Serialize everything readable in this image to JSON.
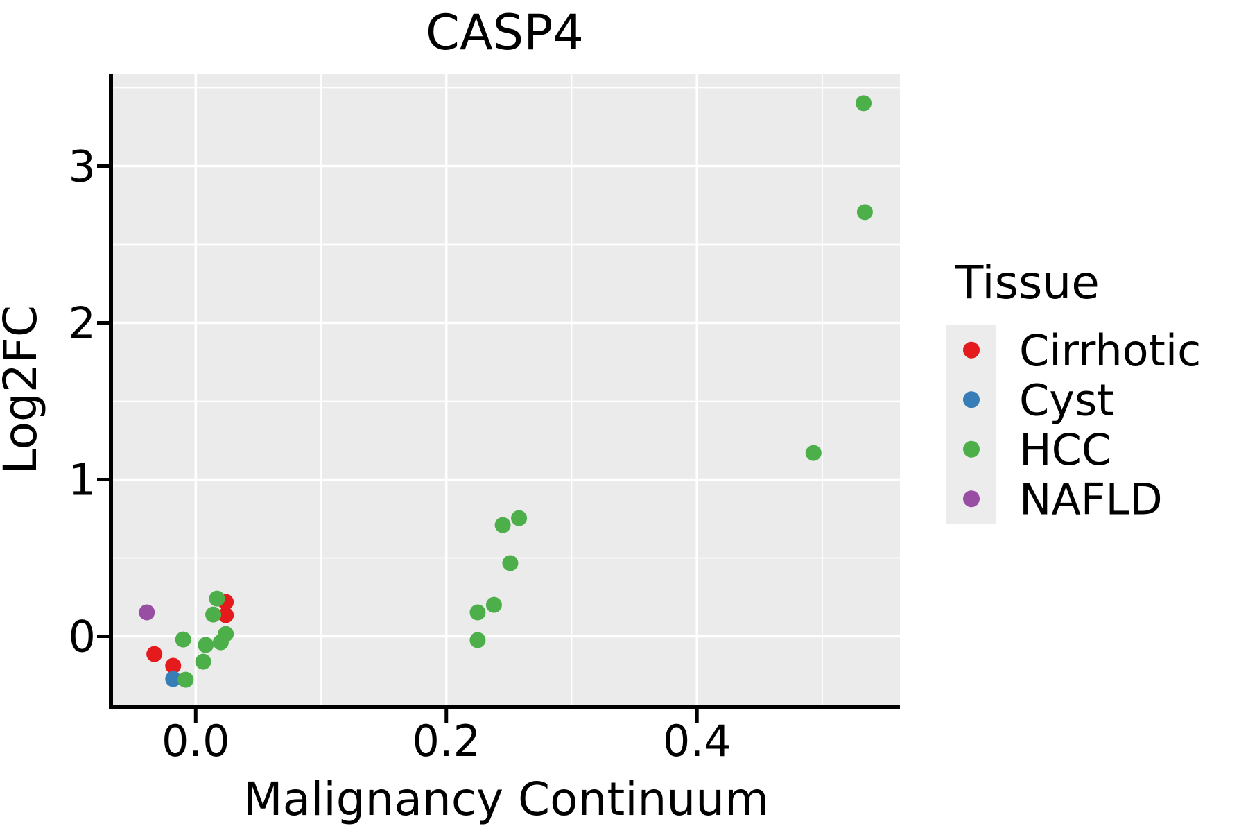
{
  "figure": {
    "title": "CASP4",
    "background": "#ffffff",
    "panel_background": "#ebebeb",
    "legend_key_background": "#ececec",
    "grid_color": "#ffffff",
    "axis_color": "#000000",
    "text_color": "#000000"
  },
  "chart_data": {
    "type": "scatter",
    "title": "CASP4",
    "xlabel": "Malignancy Continuum",
    "ylabel": "Log2FC",
    "xlim": [
      -0.066,
      0.562
    ],
    "ylim": [
      -0.44,
      3.586
    ],
    "x_ticks": {
      "values": [
        0.0,
        0.2,
        0.4
      ],
      "labels": [
        "0.0",
        "0.2",
        "0.4"
      ]
    },
    "y_ticks": {
      "values": [
        0,
        1,
        2,
        3
      ],
      "labels": [
        "0",
        "1",
        "2",
        "3"
      ]
    },
    "x_minor_ticks": [
      0.1,
      0.3,
      0.5
    ],
    "y_minor_ticks": [
      0.5,
      1.5,
      2.5,
      3.5
    ],
    "grid": true,
    "legend_position": "right",
    "series": [
      {
        "name": "Cirrhotic",
        "color": "#e41a1c",
        "points": [
          [
            -0.033,
            -0.113
          ],
          [
            -0.018,
            -0.188
          ],
          [
            0.024,
            0.219
          ],
          [
            0.024,
            0.135
          ]
        ]
      },
      {
        "name": "Cyst",
        "color": "#377eb8",
        "points": [
          [
            -0.018,
            -0.272
          ]
        ]
      },
      {
        "name": "HCC",
        "color": "#4daf4a",
        "points": [
          [
            -0.01,
            -0.02
          ],
          [
            -0.008,
            -0.277
          ],
          [
            0.006,
            -0.162
          ],
          [
            0.008,
            -0.055
          ],
          [
            0.014,
            0.139
          ],
          [
            0.017,
            0.241
          ],
          [
            0.02,
            -0.038
          ],
          [
            0.024,
            0.015
          ],
          [
            0.225,
            -0.024
          ],
          [
            0.225,
            0.153
          ],
          [
            0.238,
            0.201
          ],
          [
            0.245,
            0.71
          ],
          [
            0.251,
            0.467
          ],
          [
            0.258,
            0.754
          ],
          [
            0.493,
            1.17
          ],
          [
            0.533,
            3.401
          ],
          [
            0.534,
            2.706
          ]
        ]
      },
      {
        "name": "NAFLD",
        "color": "#984ea3",
        "points": [
          [
            -0.039,
            0.153
          ]
        ]
      }
    ]
  },
  "legend": {
    "title": "Tissue",
    "items": [
      {
        "label": "Cirrhotic",
        "color": "#e41a1c"
      },
      {
        "label": "Cyst",
        "color": "#377eb8"
      },
      {
        "label": "HCC",
        "color": "#4daf4a"
      },
      {
        "label": "NAFLD",
        "color": "#984ea3"
      }
    ]
  }
}
